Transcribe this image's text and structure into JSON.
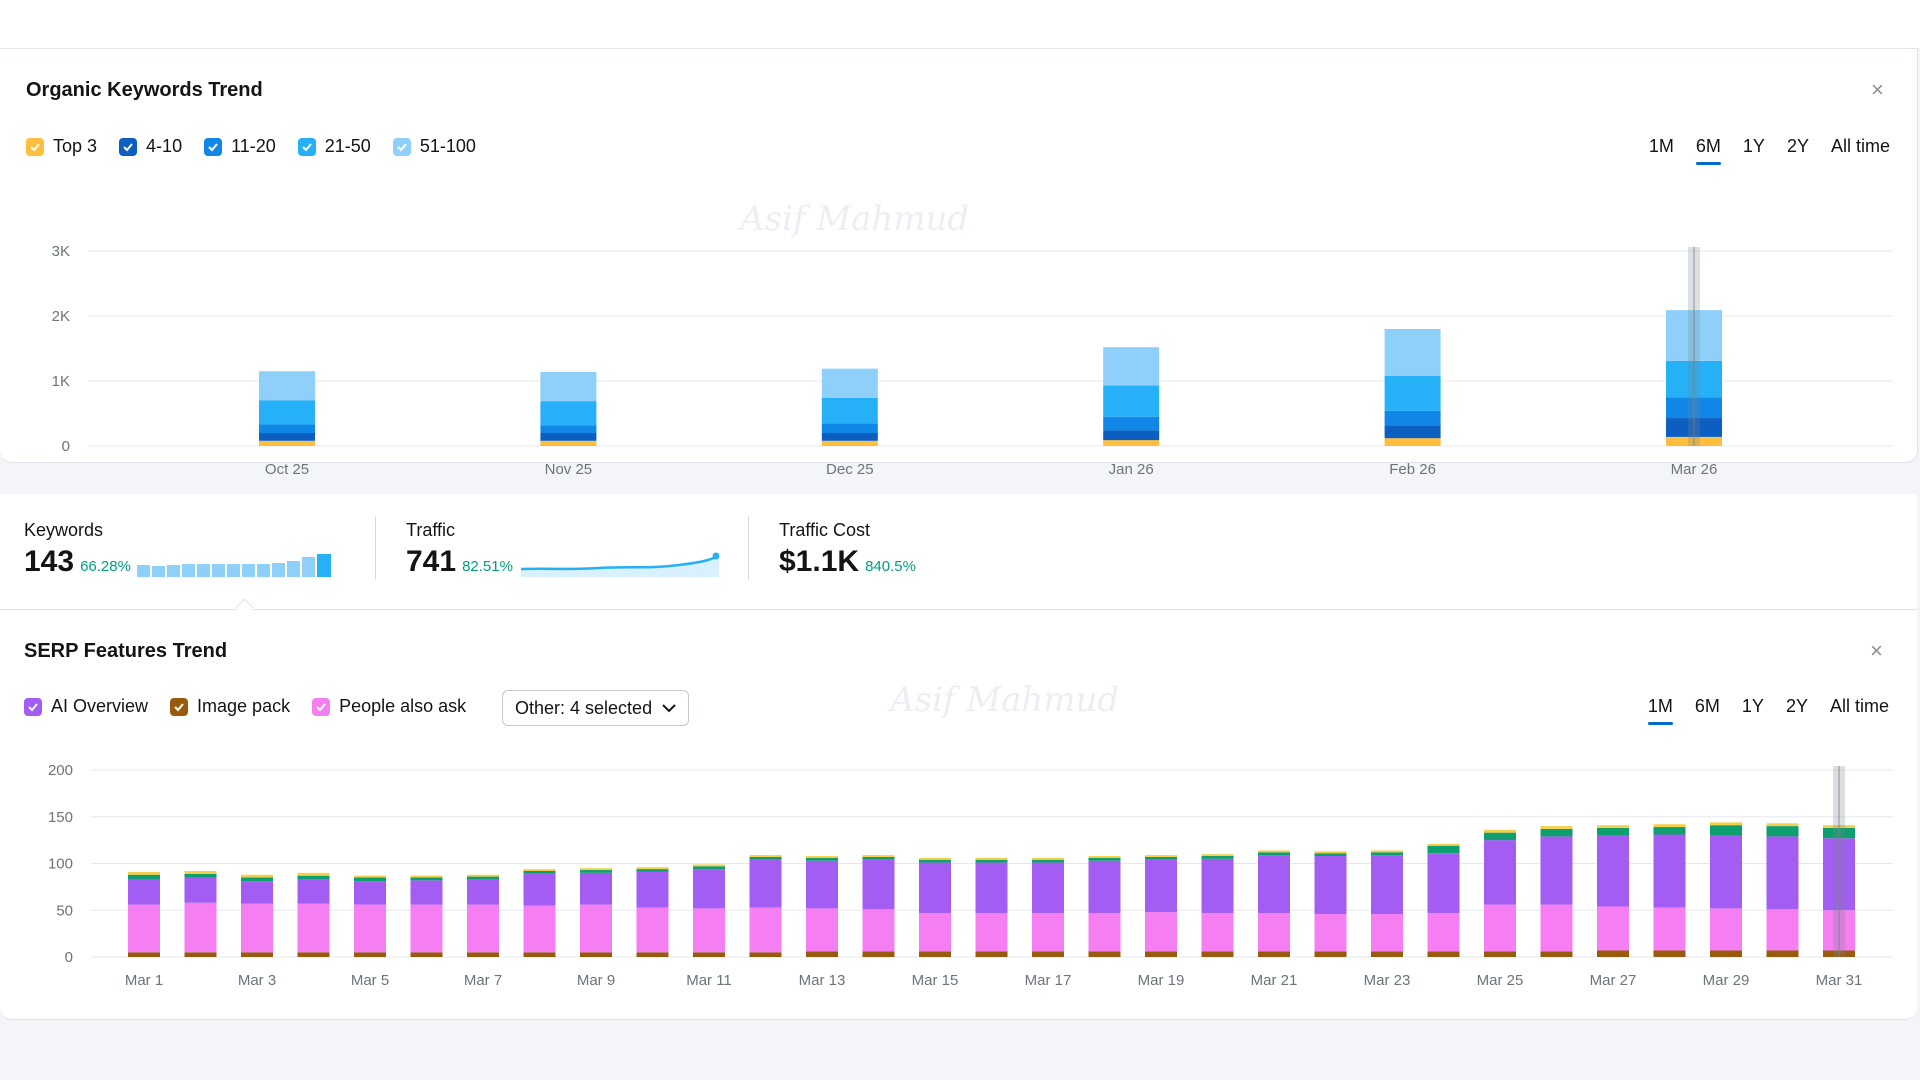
{
  "okt": {
    "title": "Organic Keywords Trend",
    "close_label": "×",
    "legend": [
      {
        "label": "Top 3",
        "color": "#ffbe3b"
      },
      {
        "label": "4-10",
        "color": "#0d5ec1"
      },
      {
        "label": "11-20",
        "color": "#1087e6"
      },
      {
        "label": "21-50",
        "color": "#26b0f7"
      },
      {
        "label": "51-100",
        "color": "#8fd0fb"
      }
    ],
    "ranges": [
      "1M",
      "6M",
      "1Y",
      "2Y",
      "All time"
    ],
    "active_range": "6M"
  },
  "kpi": {
    "keywords": {
      "label": "Keywords",
      "value": "143",
      "delta": "66.28%"
    },
    "traffic": {
      "label": "Traffic",
      "value": "741",
      "delta": "82.51%"
    },
    "cost": {
      "label": "Traffic Cost",
      "value": "$1.1K",
      "delta": "840.5%"
    }
  },
  "serp": {
    "title": "SERP Features Trend",
    "close_label": "×",
    "legend": [
      {
        "label": "AI Overview",
        "color": "#a35df3"
      },
      {
        "label": "Image pack",
        "color": "#9a5a0d"
      },
      {
        "label": "People also ask",
        "color": "#f57ef2"
      }
    ],
    "other_label": "Other: 4 selected",
    "ranges": [
      "1M",
      "6M",
      "1Y",
      "2Y",
      "All time"
    ],
    "active_range": "1M"
  },
  "chart_data": [
    {
      "type": "bar",
      "title": "Organic Keywords Trend",
      "stacked": true,
      "categories": [
        "Oct 25",
        "Nov 25",
        "Dec 25",
        "Jan 26",
        "Feb 26",
        "Mar 26"
      ],
      "yticks": [
        "0",
        "1K",
        "2K",
        "3K"
      ],
      "ylim": [
        0,
        3000
      ],
      "grid": true,
      "series": [
        {
          "name": "Top 3",
          "color": "#ffbe3b",
          "values": [
            80,
            80,
            80,
            90,
            120,
            140
          ]
        },
        {
          "name": "4-10",
          "color": "#0d5ec1",
          "values": [
            120,
            120,
            120,
            150,
            200,
            290
          ]
        },
        {
          "name": "11-20",
          "color": "#1087e6",
          "values": [
            130,
            120,
            150,
            210,
            220,
            320
          ]
        },
        {
          "name": "21-50",
          "color": "#26b0f7",
          "values": [
            370,
            370,
            390,
            480,
            540,
            560
          ]
        },
        {
          "name": "51-100",
          "color": "#8fd0fb",
          "values": [
            450,
            450,
            450,
            590,
            720,
            780
          ]
        }
      ]
    },
    {
      "type": "bar",
      "title": "SERP Features Trend",
      "stacked": true,
      "categories": [
        "Mar 1",
        "Mar 2",
        "Mar 3",
        "Mar 4",
        "Mar 5",
        "Mar 6",
        "Mar 7",
        "Mar 8",
        "Mar 9",
        "Mar 10",
        "Mar 11",
        "Mar 12",
        "Mar 13",
        "Mar 14",
        "Mar 15",
        "Mar 16",
        "Mar 17",
        "Mar 18",
        "Mar 19",
        "Mar 20",
        "Mar 21",
        "Mar 22",
        "Mar 23",
        "Mar 24",
        "Mar 25",
        "Mar 26",
        "Mar 27",
        "Mar 28",
        "Mar 29",
        "Mar 30",
        "Mar 31"
      ],
      "xticks_shown": [
        "Mar 1",
        "Mar 3",
        "Mar 5",
        "Mar 7",
        "Mar 9",
        "Mar 11",
        "Mar 13",
        "Mar 15",
        "Mar 17",
        "Mar 19",
        "Mar 21",
        "Mar 23",
        "Mar 25",
        "Mar 27",
        "Mar 29",
        "Mar 31"
      ],
      "yticks": [
        "0",
        "50",
        "100",
        "150",
        "200"
      ],
      "ylim": [
        0,
        200
      ],
      "grid": true,
      "series": [
        {
          "name": "Image pack",
          "color": "#9a5a0d",
          "values": [
            5,
            5,
            5,
            5,
            5,
            5,
            5,
            5,
            5,
            5,
            5,
            5,
            6,
            6,
            6,
            6,
            6,
            6,
            6,
            6,
            6,
            6,
            6,
            6,
            6,
            6,
            7,
            7,
            7,
            7,
            7
          ]
        },
        {
          "name": "People also ask",
          "color": "#f57ef2",
          "values": [
            51,
            53,
            52,
            52,
            51,
            51,
            51,
            50,
            51,
            48,
            47,
            48,
            46,
            45,
            41,
            41,
            41,
            41,
            42,
            41,
            41,
            40,
            40,
            41,
            50,
            50,
            47,
            46,
            45,
            44,
            43
          ]
        },
        {
          "name": "AI Overview",
          "color": "#a35df3",
          "values": [
            27,
            27,
            24,
            26,
            25,
            26,
            27,
            34,
            34,
            38,
            42,
            51,
            51,
            53,
            54,
            54,
            54,
            56,
            56,
            58,
            62,
            62,
            63,
            64,
            69,
            73,
            76,
            78,
            78,
            78,
            77
          ]
        },
        {
          "name": "Other",
          "color": "#0e9f6e",
          "values": [
            5,
            4,
            4,
            4,
            4,
            3,
            3,
            3,
            3,
            3,
            3,
            3,
            3,
            3,
            3,
            3,
            3,
            3,
            3,
            3,
            3,
            3,
            3,
            8,
            8,
            8,
            8,
            8,
            11,
            11,
            11
          ]
        },
        {
          "name": "Other 2",
          "color": "#f4d04a",
          "values": [
            3,
            3,
            3,
            3,
            2,
            2,
            2,
            2,
            2,
            2,
            2,
            2,
            2,
            2,
            2,
            2,
            2,
            2,
            2,
            2,
            2,
            2,
            2,
            2,
            3,
            3,
            3,
            3,
            3,
            3,
            3
          ]
        }
      ]
    }
  ]
}
